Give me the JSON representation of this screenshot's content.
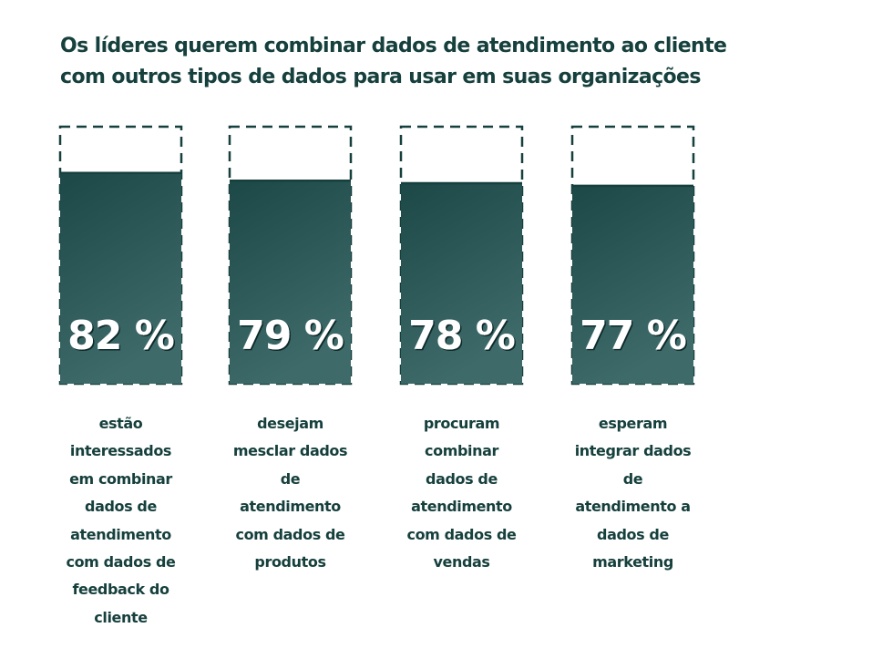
{
  "title_line1": "Os líderes querem combinar dados de atendimento ao cliente",
  "title_line2": "com outros tipos de dados para usar em suas organizações",
  "colors": {
    "text": "#16403d",
    "bar_top": "#1c4848",
    "bar_bottom": "#3e6b6a",
    "outline": "#16403d",
    "label": "#ffffff"
  },
  "chart_data": {
    "type": "bar",
    "title": "Os líderes querem combinar dados de atendimento ao cliente com outros tipos de dados para usar em suas organizações",
    "unit": "%",
    "ylim": [
      0,
      100
    ],
    "categories": [
      "estão interessados em combinar dados de atendimento com dados de feedback do cliente",
      "desejam mesclar dados de atendimento com dados de produtos",
      "procuram combinar dados de atendimento com dados de vendas",
      "esperam integrar dados de atendimento a dados de marketing"
    ],
    "values": [
      82,
      79,
      78,
      77
    ],
    "value_labels": [
      "82 %",
      "79 %",
      "78 %",
      "77 %"
    ],
    "caption_lines": [
      [
        "estão",
        "interessados",
        "em combinar",
        "dados de",
        "atendimento",
        "com dados de",
        "feedback do",
        "cliente"
      ],
      [
        "desejam",
        "mesclar dados",
        "de",
        "atendimento",
        "com dados de",
        "produtos"
      ],
      [
        "procuram",
        "combinar",
        "dados de",
        "atendimento",
        "com dados de",
        "vendas"
      ],
      [
        "esperam",
        "integrar dados",
        "de",
        "atendimento a",
        "dados de",
        "marketing"
      ]
    ],
    "grid": false,
    "legend": "none"
  }
}
